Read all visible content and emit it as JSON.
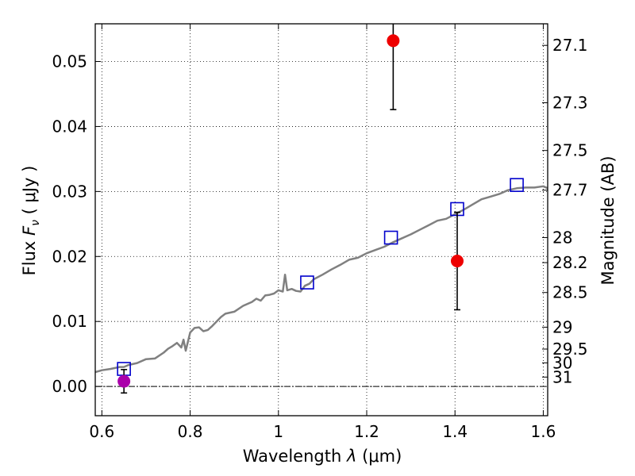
{
  "chart_data": {
    "type": "scatter",
    "xlabel": "Wavelength",
    "xlabel_symbol": "λ",
    "xlabel_unit": "(μm)",
    "ylabel": "Flux",
    "ylabel_symbol": "F",
    "ylabel_subscript": "ν",
    "ylabel_unit": "( μJy )",
    "y2label": "Magnitude (AB)",
    "xlim": [
      0.585,
      1.61
    ],
    "ylim": [
      -0.0045,
      0.0558
    ],
    "grid": true,
    "x_ticks": [
      0.6,
      0.8,
      1.0,
      1.2,
      1.4,
      1.6
    ],
    "x_tick_labels": [
      "0.6",
      "0.8",
      "1",
      "1.2",
      "1.4",
      "1.6"
    ],
    "y_ticks": [
      0.0,
      0.01,
      0.02,
      0.03,
      0.04,
      0.05
    ],
    "y_tick_labels": [
      "0.00",
      "0.01",
      "0.02",
      "0.03",
      "0.04",
      "0.05"
    ],
    "y2_ticks": [
      27.1,
      27.3,
      27.5,
      27.7,
      28,
      28.2,
      28.5,
      29,
      29.5,
      30,
      31
    ],
    "y2_tick_labels": [
      "27.1",
      "27.3",
      "27.5",
      "27.7",
      "28",
      "28.2",
      "28.5",
      "29",
      "29.5",
      "30",
      "31"
    ],
    "zero_line": 0.0,
    "colors": {
      "spectrum": "#808080",
      "model_marker": "#0000cc",
      "detection": "#ee0000",
      "upper_marker": "#aa00aa",
      "errorbar": "#000000"
    },
    "series": [
      {
        "kind": "line",
        "x": [
          0.585,
          0.6,
          0.62,
          0.64,
          0.65,
          0.66,
          0.68,
          0.7,
          0.72,
          0.74,
          0.75,
          0.76,
          0.77,
          0.78,
          0.785,
          0.79,
          0.8,
          0.81,
          0.82,
          0.83,
          0.84,
          0.85,
          0.86,
          0.87,
          0.88,
          0.9,
          0.92,
          0.94,
          0.95,
          0.96,
          0.97,
          0.98,
          0.99,
          1.0,
          1.01,
          1.015,
          1.02,
          1.03,
          1.04,
          1.05,
          1.06,
          1.07,
          1.08,
          1.1,
          1.12,
          1.14,
          1.16,
          1.18,
          1.2,
          1.22,
          1.24,
          1.26,
          1.28,
          1.3,
          1.32,
          1.34,
          1.36,
          1.38,
          1.4,
          1.42,
          1.44,
          1.46,
          1.48,
          1.5,
          1.52,
          1.54,
          1.56,
          1.58,
          1.6,
          1.61
        ],
        "y": [
          0.0022,
          0.0025,
          0.0027,
          0.003,
          0.003,
          0.0033,
          0.0036,
          0.0042,
          0.0043,
          0.0052,
          0.0058,
          0.0062,
          0.0067,
          0.006,
          0.0072,
          0.0055,
          0.0083,
          0.009,
          0.0091,
          0.0085,
          0.0087,
          0.0093,
          0.01,
          0.0107,
          0.0112,
          0.0115,
          0.0124,
          0.013,
          0.0135,
          0.0132,
          0.014,
          0.0141,
          0.0143,
          0.0148,
          0.0146,
          0.0172,
          0.0148,
          0.015,
          0.0147,
          0.0146,
          0.0155,
          0.0158,
          0.0165,
          0.0172,
          0.018,
          0.0187,
          0.0195,
          0.0198,
          0.0205,
          0.021,
          0.0215,
          0.0222,
          0.0228,
          0.0234,
          0.0241,
          0.0248,
          0.0255,
          0.0258,
          0.0265,
          0.0272,
          0.028,
          0.0288,
          0.0292,
          0.0296,
          0.0302,
          0.0305,
          0.0306,
          0.0306,
          0.0308,
          0.0305
        ]
      },
      {
        "kind": "model_points",
        "x": [
          0.65,
          1.065,
          1.255,
          1.405,
          1.54
        ],
        "y": [
          0.0027,
          0.016,
          0.0229,
          0.0273,
          0.031
        ]
      },
      {
        "kind": "detections",
        "x": [
          1.26,
          1.405
        ],
        "y": [
          0.0532,
          0.0193
        ],
        "yerr_low": [
          0.0426,
          0.0118
        ],
        "yerr_high": [
          0.0558,
          0.0268
        ]
      },
      {
        "kind": "upper_limit",
        "x": [
          0.65
        ],
        "y": [
          0.0008
        ],
        "yerr_low": [
          -0.001
        ],
        "yerr_high": [
          0.0026
        ]
      }
    ]
  }
}
